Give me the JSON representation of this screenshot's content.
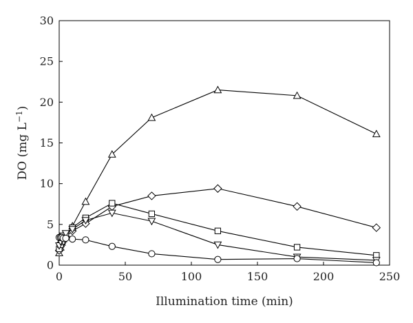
{
  "chart_data": {
    "type": "line",
    "title": "",
    "xlabel": "Illumination time (min)",
    "ylabel_main": "DO (mg L",
    "ylabel_sup": "−1",
    "ylabel_close": ")",
    "xlim": [
      0,
      250
    ],
    "ylim": [
      0,
      30
    ],
    "xticks": [
      0,
      50,
      100,
      150,
      200,
      250
    ],
    "yticks": [
      0,
      5,
      10,
      15,
      20,
      25,
      30
    ],
    "grid": false,
    "legend": "none",
    "line_color": "#000000",
    "series": [
      {
        "marker": "triangle-up",
        "x": [
          0,
          1,
          2,
          3,
          5,
          10,
          20,
          40,
          70,
          120,
          180,
          240
        ],
        "y": [
          1.5,
          2.2,
          2.8,
          3.2,
          3.6,
          4.8,
          7.8,
          13.6,
          18.1,
          21.5,
          20.8,
          16.1
        ]
      },
      {
        "marker": "diamond",
        "x": [
          0,
          1,
          2,
          3,
          5,
          10,
          20,
          40,
          70,
          120,
          180,
          240
        ],
        "y": [
          1.8,
          2.3,
          2.7,
          3.0,
          3.5,
          4.2,
          5.1,
          7.2,
          8.5,
          9.4,
          7.2,
          4.6
        ]
      },
      {
        "marker": "square",
        "x": [
          0,
          1,
          2,
          3,
          5,
          10,
          20,
          40,
          70,
          120,
          180,
          240
        ],
        "y": [
          2.0,
          2.5,
          2.9,
          3.3,
          3.8,
          4.6,
          5.8,
          7.6,
          6.3,
          4.2,
          2.2,
          1.2
        ]
      },
      {
        "marker": "triangle-down",
        "x": [
          0,
          1,
          2,
          3,
          5,
          10,
          20,
          40,
          70,
          120,
          180,
          240
        ],
        "y": [
          2.4,
          2.9,
          3.3,
          3.6,
          3.9,
          4.4,
          5.5,
          6.4,
          5.4,
          2.5,
          1.0,
          0.6
        ]
      },
      {
        "marker": "circle",
        "x": [
          0,
          1,
          2,
          3,
          5,
          10,
          20,
          40,
          70,
          120,
          180,
          240
        ],
        "y": [
          3.4,
          3.4,
          3.4,
          3.3,
          3.3,
          3.2,
          3.1,
          2.3,
          1.4,
          0.7,
          0.8,
          0.3
        ]
      }
    ]
  }
}
